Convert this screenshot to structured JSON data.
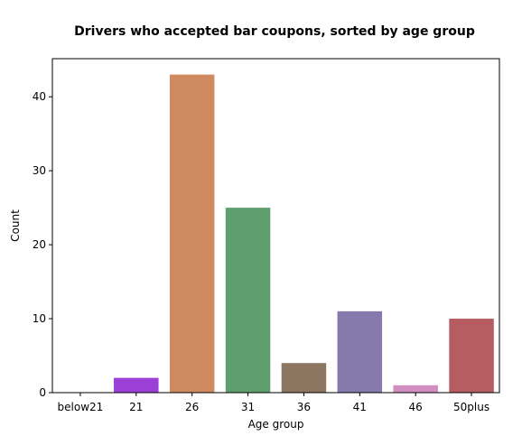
{
  "chart_data": {
    "type": "bar",
    "title": "Drivers who accepted bar coupons, sorted by age group",
    "xlabel": "Age group",
    "ylabel": "Count",
    "categories": [
      "below21",
      "21",
      "26",
      "31",
      "36",
      "41",
      "46",
      "50plus"
    ],
    "values": [
      0,
      2,
      43,
      25,
      4,
      11,
      1,
      10
    ],
    "colors": [
      "#3274a1",
      "#9b3fd6",
      "#cf8a5f",
      "#5f9e6e",
      "#8c7561",
      "#857aab",
      "#d08fc0",
      "#b55d60"
    ],
    "ylim": [
      0,
      45.15
    ],
    "yticks": [
      0,
      10,
      20,
      30,
      40
    ],
    "grid": false,
    "legend": "none"
  }
}
